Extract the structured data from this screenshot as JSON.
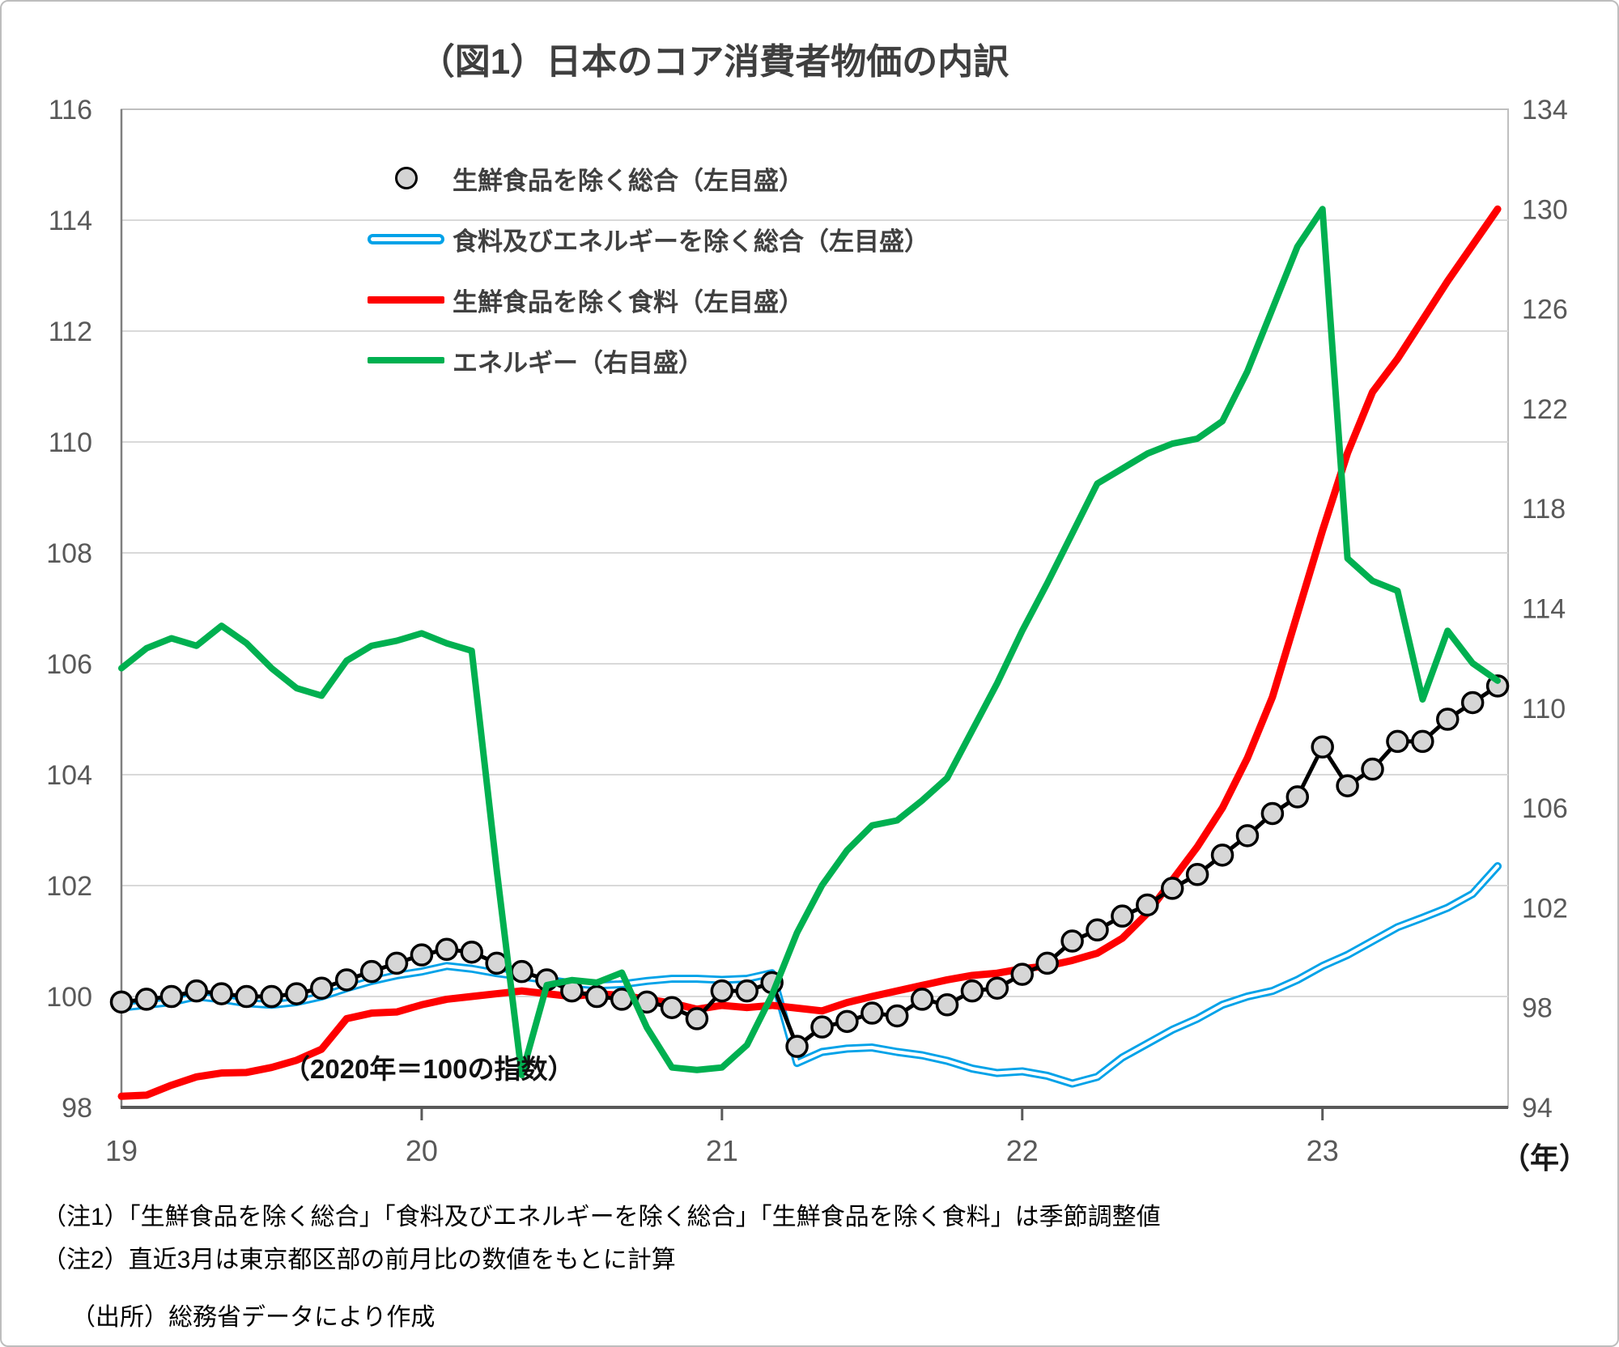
{
  "title": "（図1）日本のコア消費者物価の内訳",
  "annotation": "（2020年＝100の指数）",
  "x_unit_label": "（年）",
  "legend": {
    "items": [
      {
        "label": "生鮮食品を除く総合（左目盛）",
        "swatch": "black-marker-line"
      },
      {
        "label": "食料及びエネルギーを除く総合（左目盛）",
        "swatch": "blue-double-line"
      },
      {
        "label": "生鮮食品を除く食料（左目盛）",
        "swatch": "red-line"
      },
      {
        "label": "エネルギー（右目盛）",
        "swatch": "green-line"
      }
    ]
  },
  "notes": {
    "note1": "（注1）「生鮮食品を除く総合」「食料及びエネルギーを除く総合」「生鮮食品を除く食料」は季節調整値",
    "note2": "（注2）直近3月は東京都区部の前月比の数値をもとに計算",
    "source": "（出所）総務省データにより作成"
  },
  "colors": {
    "black_series": "#000000",
    "black_marker_fill": "#d6d6d6",
    "blue_series": "#00a2e8",
    "red_series": "#fe0000",
    "green_series": "#00b050",
    "gridline": "#d9d9d9",
    "axis": "#595959",
    "plot_border": "#bfbfbf",
    "tick_text": "#595959"
  },
  "chart_data": {
    "type": "line",
    "title": "（図1）日本のコア消費者物価の内訳",
    "x_start": "2019-01",
    "x_frequency": "monthly",
    "x_tick_labels": [
      "19",
      "20",
      "21",
      "22",
      "23"
    ],
    "x_tick_month_indices": [
      0,
      12,
      24,
      36,
      48
    ],
    "left_axis_ticks": [
      116,
      114,
      112,
      110,
      108,
      106,
      104,
      102,
      100,
      98
    ],
    "right_axis_ticks": [
      134,
      130,
      126,
      122,
      118,
      114,
      110,
      106,
      102,
      98,
      94
    ],
    "left_ylim": [
      98,
      116
    ],
    "right_ylim": [
      94,
      134
    ],
    "grid": "horizontal",
    "legend_position": "top-left-inside",
    "series": [
      {
        "name": "生鮮食品を除く総合（左目盛）",
        "axis": "left",
        "style": "marker-line",
        "color": "#000000",
        "values": [
          99.9,
          99.95,
          100,
          100.1,
          100.05,
          100,
          100,
          100.05,
          100.15,
          100.3,
          100.45,
          100.6,
          100.75,
          100.85,
          100.8,
          100.6,
          100.45,
          100.3,
          100.1,
          100,
          99.95,
          99.9,
          99.8,
          99.6,
          100.1,
          100.1,
          100.25,
          99.1,
          99.45,
          99.55,
          99.7,
          99.65,
          99.95,
          99.85,
          100.1,
          100.15,
          100.4,
          100.6,
          101,
          101.2,
          101.45,
          101.65,
          101.95,
          102.2,
          102.55,
          102.9,
          103.3,
          103.6,
          104.5,
          103.8,
          104.1,
          104.6,
          104.6,
          105,
          105.3,
          105.6
        ]
      },
      {
        "name": "食料及びエネルギーを除く総合（左目盛）",
        "axis": "left",
        "style": "double-line",
        "color": "#00a2e8",
        "values": [
          99.8,
          99.85,
          99.9,
          100,
          99.95,
          99.88,
          99.85,
          99.9,
          100,
          100.15,
          100.28,
          100.38,
          100.45,
          100.55,
          100.5,
          100.42,
          100.36,
          100.3,
          100.24,
          100.2,
          100.22,
          100.28,
          100.32,
          100.32,
          100.3,
          100.32,
          100.42,
          98.8,
          99,
          99.06,
          99.08,
          99,
          98.94,
          98.84,
          98.7,
          98.62,
          98.65,
          98.57,
          98.43,
          98.55,
          98.9,
          99.15,
          99.4,
          99.6,
          99.85,
          100,
          100.1,
          100.3,
          100.55,
          100.75,
          101,
          101.25,
          101.42,
          101.6,
          101.85,
          102.35
        ]
      },
      {
        "name": "生鮮食品を除く食料（左目盛）",
        "axis": "left",
        "style": "solid",
        "color": "#fe0000",
        "values": [
          98.2,
          98.22,
          98.4,
          98.55,
          98.62,
          98.63,
          98.72,
          98.85,
          99.05,
          99.6,
          99.7,
          99.72,
          99.85,
          99.95,
          100,
          100.05,
          100.1,
          100.05,
          100,
          100.05,
          100.02,
          99.95,
          99.88,
          99.77,
          99.84,
          99.8,
          99.84,
          99.79,
          99.74,
          99.89,
          100,
          100.1,
          100.2,
          100.3,
          100.38,
          100.42,
          100.5,
          100.55,
          100.65,
          100.78,
          101.05,
          101.5,
          102.1,
          102.7,
          103.4,
          104.3,
          105.4,
          106.9,
          108.4,
          109.8,
          110.9,
          111.5,
          112.2,
          112.9,
          113.55,
          114.2
        ]
      },
      {
        "name": "エネルギー（右目盛）",
        "axis": "right",
        "style": "solid",
        "color": "#00b050",
        "values": [
          111.6,
          112.4,
          112.8,
          112.5,
          113.3,
          112.6,
          111.6,
          110.8,
          110.5,
          111.9,
          112.5,
          112.7,
          113,
          112.6,
          112.3,
          103.5,
          95.3,
          98.9,
          99.1,
          99,
          99.4,
          97.2,
          95.6,
          95.5,
          95.6,
          96.5,
          98.5,
          101,
          102.9,
          104.3,
          105.3,
          105.5,
          106.3,
          107.2,
          109.1,
          111,
          113.1,
          115,
          117,
          119,
          119.6,
          120.2,
          120.6,
          120.8,
          121.5,
          123.5,
          126,
          128.5,
          130,
          116,
          115.1,
          114.7,
          110.35,
          113.1,
          111.8,
          111.1
        ]
      }
    ]
  }
}
